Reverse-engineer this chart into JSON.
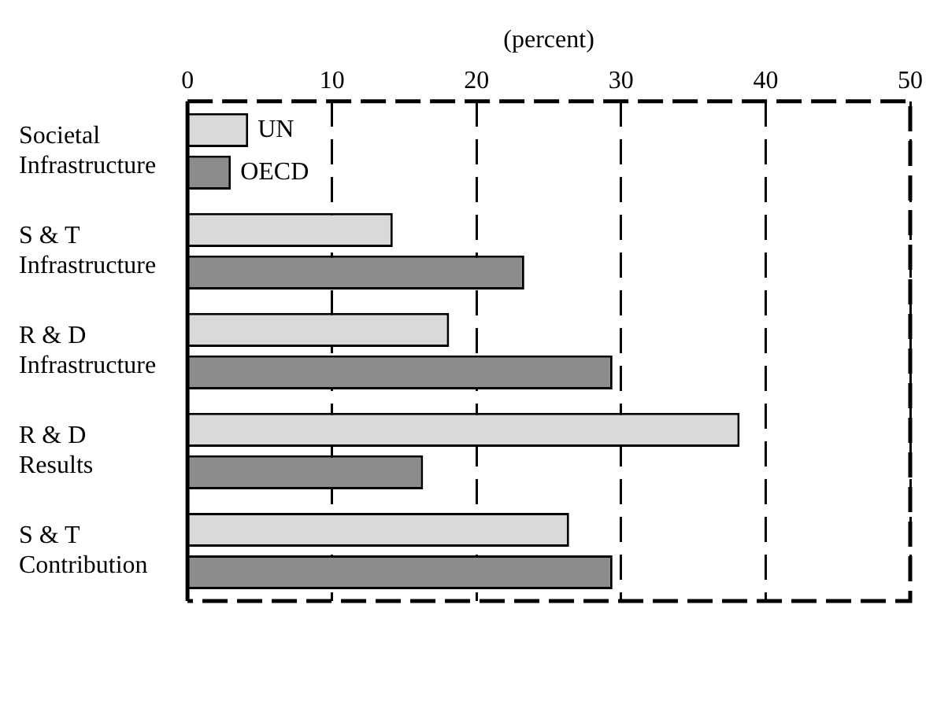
{
  "chart_data": {
    "type": "bar",
    "orientation": "horizontal",
    "xlabel": "(percent)",
    "categories": [
      "Societal Infrastructure",
      "S & T Infrastructure",
      "R & D Infrastructure",
      "R & D Results",
      "S & T Contribution"
    ],
    "series": [
      {
        "name": "UN",
        "color": "#d9d9d9",
        "values": [
          4.2,
          14.2,
          18.1,
          38.2,
          26.4
        ]
      },
      {
        "name": "OECD",
        "color": "#8c8c8c",
        "values": [
          3.0,
          23.3,
          29.4,
          16.3,
          29.4
        ]
      }
    ],
    "xlim": [
      0,
      50
    ],
    "xticks": [
      0,
      10,
      20,
      30,
      40,
      50
    ],
    "grid": "x",
    "legend": false
  }
}
